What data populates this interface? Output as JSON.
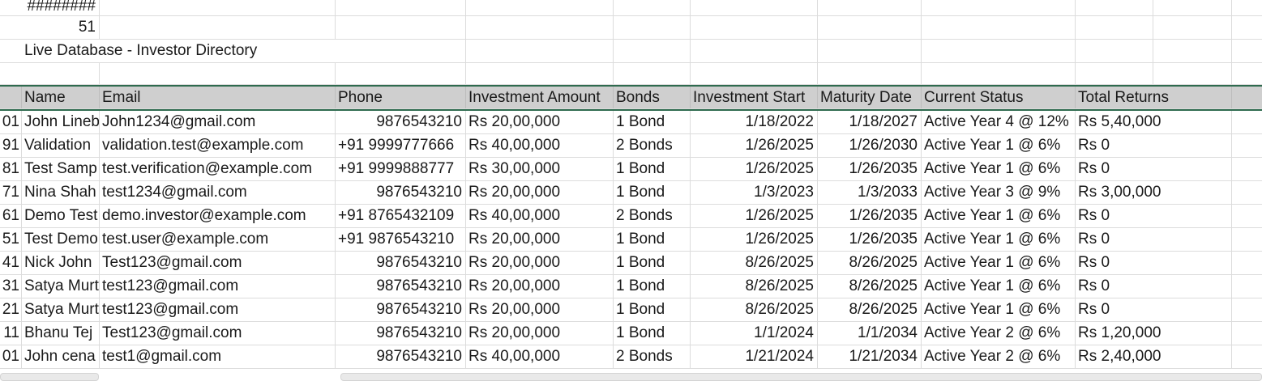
{
  "sheet": {
    "a1": "########",
    "a2": "51",
    "title": "Live Database - Investor Directory"
  },
  "headers": [
    "Name",
    "Email",
    "Phone",
    "Investment Amount",
    "Bonds",
    "Investment Start",
    "Maturity Date",
    "Current Status",
    "Total Returns"
  ],
  "rows": [
    {
      "id": "01",
      "name": "John Lineb",
      "email": "John1234@gmail.com",
      "phone": "9876543210",
      "amount": "Rs 20,00,000",
      "bonds": "1 Bond",
      "start": "1/18/2022",
      "maturity": "1/18/2027",
      "status": "Active Year 4 @ 12%",
      "returns": "Rs 5,40,000"
    },
    {
      "id": "91",
      "name": "Validation",
      "email": "validation.test@example.com",
      "phone": "+91 9999777666",
      "amount": "Rs 40,00,000",
      "bonds": "2 Bonds",
      "start": "1/26/2025",
      "maturity": "1/26/2030",
      "status": "Active Year 1 @ 6%",
      "returns": "Rs 0"
    },
    {
      "id": "81",
      "name": "Test Samp",
      "email": "test.verification@example.com",
      "phone": "+91 9999888777",
      "amount": "Rs 30,00,000",
      "bonds": "1 Bond",
      "start": "1/26/2025",
      "maturity": "1/26/2035",
      "status": "Active Year 1 @ 6%",
      "returns": "Rs 0"
    },
    {
      "id": "71",
      "name": "Nina Shah",
      "email": "test1234@gmail.com",
      "phone": "9876543210",
      "amount": "Rs 20,00,000",
      "bonds": "1 Bond",
      "start": "1/3/2023",
      "maturity": "1/3/2033",
      "status": "Active Year 3 @ 9%",
      "returns": "Rs 3,00,000"
    },
    {
      "id": "61",
      "name": "Demo Test",
      "email": "demo.investor@example.com",
      "phone": "+91 8765432109",
      "amount": "Rs 40,00,000",
      "bonds": "2 Bonds",
      "start": "1/26/2025",
      "maturity": "1/26/2035",
      "status": "Active Year 1 @ 6%",
      "returns": "Rs 0"
    },
    {
      "id": "51",
      "name": "Test Demo",
      "email": "test.user@example.com",
      "phone": "+91 9876543210",
      "amount": "Rs 20,00,000",
      "bonds": "1 Bond",
      "start": "1/26/2025",
      "maturity": "1/26/2035",
      "status": "Active Year 1 @ 6%",
      "returns": "Rs 0"
    },
    {
      "id": "41",
      "name": "Nick John",
      "email": "Test123@gmail.com",
      "phone": "9876543210",
      "amount": "Rs 20,00,000",
      "bonds": "1 Bond",
      "start": "8/26/2025",
      "maturity": "8/26/2025",
      "status": "Active Year 1 @ 6%",
      "returns": "Rs 0"
    },
    {
      "id": "31",
      "name": "Satya Murt",
      "email": "test123@gmail.com",
      "phone": "9876543210",
      "amount": "Rs 20,00,000",
      "bonds": "1 Bond",
      "start": "8/26/2025",
      "maturity": "8/26/2025",
      "status": "Active Year 1 @ 6%",
      "returns": "Rs 0"
    },
    {
      "id": "21",
      "name": "Satya Murt",
      "email": "test123@gmail.com",
      "phone": "9876543210",
      "amount": "Rs 20,00,000",
      "bonds": "1 Bond",
      "start": "8/26/2025",
      "maturity": "8/26/2025",
      "status": "Active Year 1 @ 6%",
      "returns": "Rs 0"
    },
    {
      "id": "11",
      "name": "Bhanu Tej",
      "email": "Test123@gmail.com",
      "phone": "9876543210",
      "amount": "Rs 20,00,000",
      "bonds": "1 Bond",
      "start": "1/1/2024",
      "maturity": "1/1/2034",
      "status": "Active Year 2 @ 6%",
      "returns": "Rs 1,20,000"
    },
    {
      "id": "01",
      "name": "John cena",
      "email": "test1@gmail.com",
      "phone": "9876543210",
      "amount": "Rs 40,00,000",
      "bonds": "2 Bonds",
      "start": "1/21/2024",
      "maturity": "1/21/2034",
      "status": "Active Year 2 @ 6%",
      "returns": "Rs 2,40,000"
    }
  ]
}
